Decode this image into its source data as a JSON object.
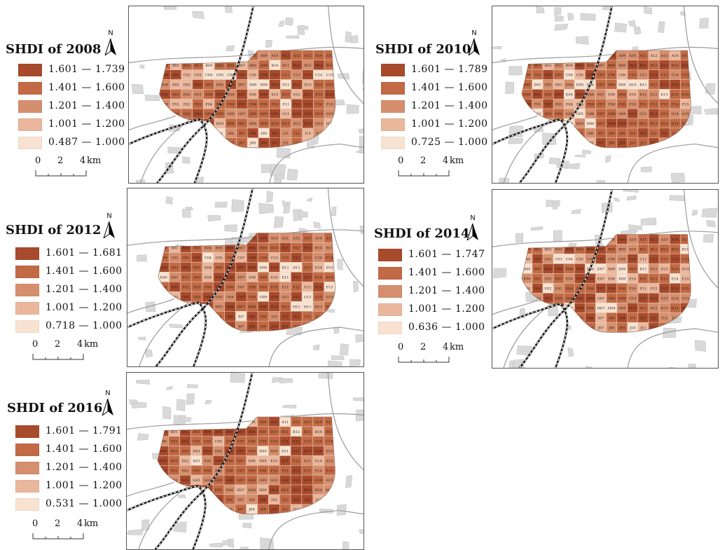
{
  "colors": {
    "class1": "#a84a2c",
    "class2": "#c26a45",
    "class3": "#d68f6e",
    "class4": "#eab79d",
    "class5": "#f8e3d2",
    "background_patches": "#d9d9d9",
    "roads": "#9a9a9a",
    "railway": "#111111",
    "grid_lines": "#e8d2c4"
  },
  "north_arrow": {
    "label": "N",
    "icon": "north-arrow-icon"
  },
  "scale_bar": {
    "labels": [
      "0",
      "2",
      "4"
    ],
    "unit": "km"
  },
  "maps": [
    {
      "title": "SHDI of 2008",
      "legend": [
        "1.601 — 1.739",
        "1.401 — 1.600",
        "1.201 — 1.400",
        "1.001 — 1.200",
        "0.487 — 1.000"
      ]
    },
    {
      "title": "SHDI of 2010",
      "legend": [
        "1.601 — 1.789",
        "1.401 — 1.600",
        "1.201 — 1.400",
        "1.001 — 1.200",
        "0.725 — 1.000"
      ]
    },
    {
      "title": "SHDI of 2012",
      "legend": [
        "1.601 — 1.681",
        "1.401 — 1.600",
        "1.201 — 1.400",
        "1.001 — 1.200",
        "0.718 — 1.000"
      ]
    },
    {
      "title": "SHDI of 2014",
      "legend": [
        "1.601 — 1.747",
        "1.401 — 1.600",
        "1.201 — 1.400",
        "1.001 — 1.200",
        "0.636 — 1.000"
      ]
    },
    {
      "title": "SHDI of 2016",
      "legend": [
        "1.601 — 1.791",
        "1.401 — 1.600",
        "1.201 — 1.400",
        "1.001 — 1.200",
        "0.531 — 1.000"
      ]
    }
  ]
}
